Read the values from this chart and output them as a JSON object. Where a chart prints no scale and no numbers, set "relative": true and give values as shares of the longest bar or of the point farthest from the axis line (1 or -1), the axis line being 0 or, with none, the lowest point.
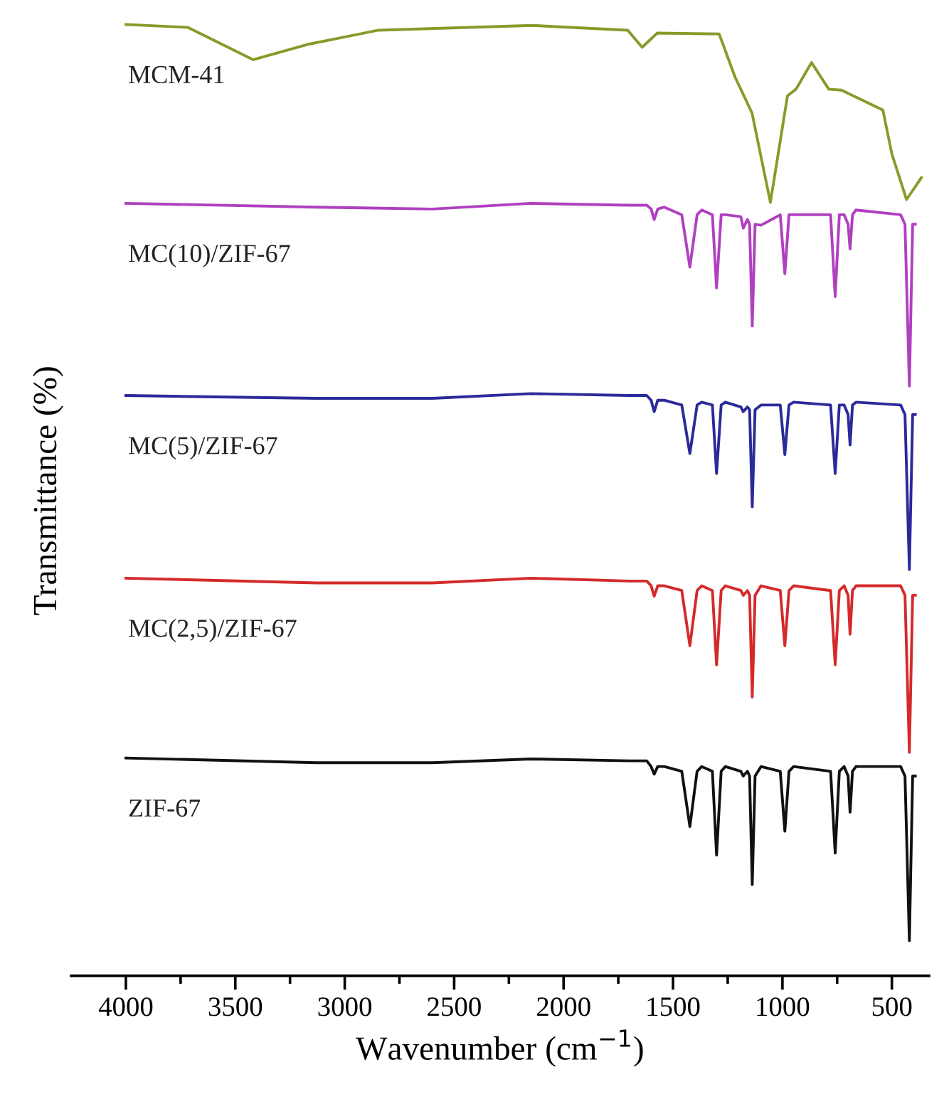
{
  "chart_data": {
    "type": "line",
    "relative": true,
    "xlabel": "Wavenumber (cm$^{−1}$)",
    "ylabel": "Transmittance (%)",
    "xlim": [
      4250,
      330
    ],
    "xticks": [
      4000,
      {
        "value": 3750,
        "label": null
      },
      3500,
      {
        "value": 3250,
        "label": null
      },
      3000,
      {
        "value": 2750,
        "label": null
      },
      2500,
      {
        "value": 2250,
        "label": null
      },
      2000,
      {
        "value": 1750,
        "label": null
      },
      1500,
      {
        "value": 1250,
        "label": null
      },
      1000,
      {
        "value": 750,
        "label": null
      },
      500
    ],
    "tick_labels": "x",
    "grid": false,
    "legend": false,
    "marker": "none",
    "line_style": "solid",
    "series": [
      {
        "name": "MCM-41",
        "color": "#8a9a2a",
        "x": [
          4000,
          3717,
          3418,
          3171,
          2846,
          2143,
          1707,
          1641,
          1572,
          1289,
          1217,
          1139,
          1055,
          977,
          938,
          867,
          788,
          730,
          541,
          500,
          433,
          365
        ],
        "values": [
          1.0,
          0.997,
          0.963,
          0.979,
          0.994,
          0.999,
          0.994,
          0.976,
          0.991,
          0.99,
          0.945,
          0.907,
          0.813,
          0.925,
          0.932,
          0.96,
          0.932,
          0.931,
          0.91,
          0.864,
          0.816,
          0.839
        ]
      },
      {
        "name": "MC(10)/ZIF-67",
        "color": "#b040c0",
        "x": [
          4000,
          3130,
          2600,
          2150,
          1700,
          1620,
          1600,
          1586,
          1570,
          1540,
          1460,
          1423,
          1390,
          1369,
          1320,
          1301,
          1280,
          1261,
          1190,
          1179,
          1160,
          1150,
          1138,
          1125,
          1098,
          1010,
          989,
          970,
          949,
          780,
          759,
          740,
          718,
          700,
          691,
          680,
          664,
          460,
          440,
          420,
          405,
          393
        ],
        "values": [
          0.812,
          0.808,
          0.806,
          0.812,
          0.81,
          0.81,
          0.806,
          0.795,
          0.806,
          0.808,
          0.8,
          0.745,
          0.8,
          0.805,
          0.8,
          0.723,
          0.8,
          0.8,
          0.798,
          0.786,
          0.795,
          0.79,
          0.683,
          0.79,
          0.789,
          0.8,
          0.738,
          0.8,
          0.8,
          0.8,
          0.714,
          0.8,
          0.8,
          0.79,
          0.764,
          0.8,
          0.805,
          0.8,
          0.79,
          0.62,
          0.79,
          0.79
        ]
      },
      {
        "name": "MC(5)/ZIF-67",
        "color": "#2a2a9a",
        "x": [
          4000,
          3130,
          2600,
          2150,
          1700,
          1620,
          1600,
          1586,
          1570,
          1540,
          1460,
          1423,
          1390,
          1369,
          1320,
          1301,
          1280,
          1261,
          1190,
          1179,
          1160,
          1150,
          1138,
          1125,
          1098,
          1010,
          989,
          970,
          949,
          780,
          759,
          740,
          718,
          700,
          691,
          680,
          664,
          460,
          440,
          420,
          405,
          393
        ],
        "values": [
          0.61,
          0.607,
          0.607,
          0.612,
          0.61,
          0.61,
          0.605,
          0.593,
          0.605,
          0.605,
          0.6,
          0.549,
          0.6,
          0.603,
          0.6,
          0.528,
          0.6,
          0.603,
          0.598,
          0.593,
          0.598,
          0.595,
          0.493,
          0.595,
          0.6,
          0.6,
          0.548,
          0.6,
          0.603,
          0.6,
          0.528,
          0.6,
          0.6,
          0.59,
          0.558,
          0.6,
          0.603,
          0.6,
          0.59,
          0.427,
          0.59,
          0.59
        ]
      },
      {
        "name": "MC(2,5)/ZIF-67",
        "color": "#d42a2a",
        "x": [
          4000,
          3130,
          2600,
          2150,
          1700,
          1620,
          1600,
          1586,
          1570,
          1540,
          1460,
          1423,
          1390,
          1369,
          1320,
          1301,
          1280,
          1261,
          1190,
          1179,
          1160,
          1150,
          1138,
          1125,
          1098,
          1010,
          989,
          970,
          949,
          780,
          759,
          740,
          718,
          700,
          691,
          680,
          664,
          460,
          440,
          420,
          405,
          393
        ],
        "values": [
          0.418,
          0.413,
          0.413,
          0.418,
          0.415,
          0.415,
          0.41,
          0.399,
          0.41,
          0.41,
          0.405,
          0.347,
          0.405,
          0.41,
          0.405,
          0.327,
          0.405,
          0.41,
          0.405,
          0.4,
          0.405,
          0.4,
          0.293,
          0.4,
          0.41,
          0.405,
          0.347,
          0.405,
          0.41,
          0.405,
          0.327,
          0.405,
          0.41,
          0.4,
          0.359,
          0.405,
          0.41,
          0.41,
          0.4,
          0.235,
          0.4,
          0.4
        ]
      },
      {
        "name": "ZIF-67",
        "color": "#111111",
        "x": [
          4000,
          3130,
          2600,
          2150,
          1700,
          1620,
          1600,
          1586,
          1570,
          1540,
          1460,
          1423,
          1390,
          1369,
          1320,
          1301,
          1280,
          1261,
          1190,
          1179,
          1160,
          1150,
          1138,
          1125,
          1098,
          1010,
          989,
          970,
          949,
          780,
          759,
          740,
          718,
          700,
          691,
          680,
          664,
          460,
          440,
          420,
          405,
          393
        ],
        "values": [
          0.229,
          0.224,
          0.224,
          0.228,
          0.226,
          0.226,
          0.22,
          0.212,
          0.22,
          0.22,
          0.215,
          0.157,
          0.215,
          0.22,
          0.215,
          0.127,
          0.215,
          0.22,
          0.215,
          0.21,
          0.215,
          0.21,
          0.096,
          0.21,
          0.22,
          0.215,
          0.152,
          0.215,
          0.22,
          0.215,
          0.129,
          0.215,
          0.22,
          0.21,
          0.172,
          0.215,
          0.22,
          0.22,
          0.21,
          0.037,
          0.21,
          0.21
        ]
      }
    ]
  }
}
